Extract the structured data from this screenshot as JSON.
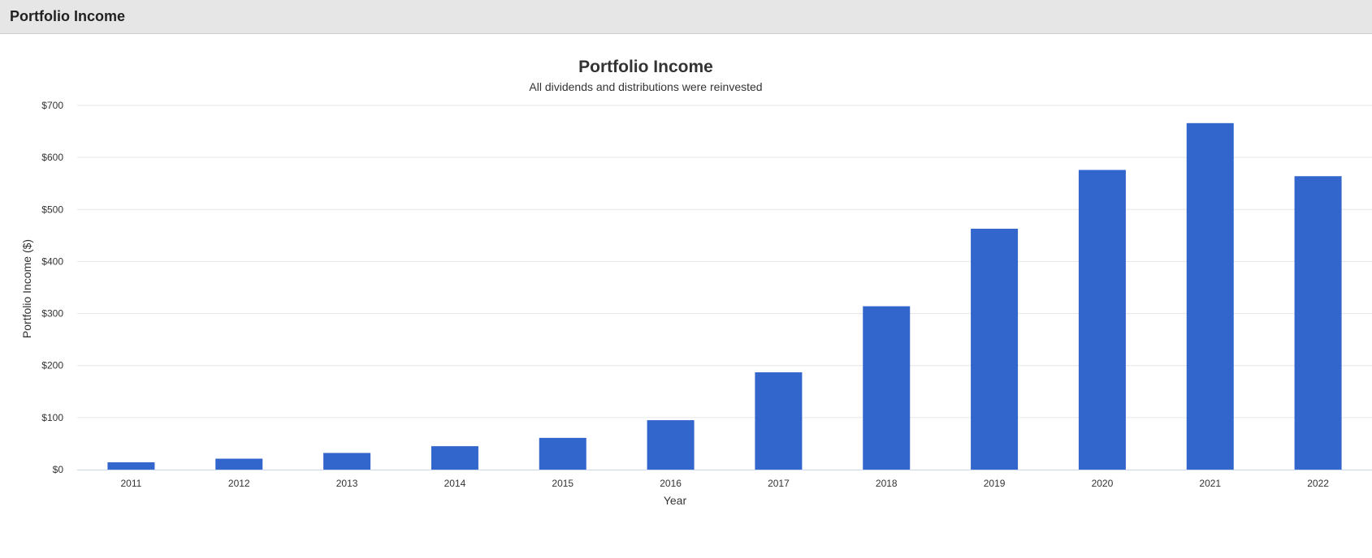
{
  "panel": {
    "title": "Portfolio Income"
  },
  "colors": {
    "bar": "#3366cc",
    "grid": "#e6e6e6",
    "axis": "#ccd6eb"
  },
  "chart_data": {
    "type": "bar",
    "title": "Portfolio Income",
    "subtitle": "All dividends and distributions were reinvested",
    "xlabel": "Year",
    "ylabel": "Portfolio Income ($)",
    "categories": [
      "2011",
      "2012",
      "2013",
      "2014",
      "2015",
      "2016",
      "2017",
      "2018",
      "2019",
      "2020",
      "2021",
      "2022"
    ],
    "values": [
      14,
      21,
      32,
      45,
      61,
      95,
      187,
      314,
      463,
      576,
      666,
      564
    ],
    "ylim": [
      0,
      700
    ],
    "yticks": [
      0,
      100,
      200,
      300,
      400,
      500,
      600,
      700
    ],
    "ytick_labels": [
      "$0",
      "$100",
      "$200",
      "$300",
      "$400",
      "$500",
      "$600",
      "$700"
    ],
    "grid": true,
    "legend": "none"
  }
}
